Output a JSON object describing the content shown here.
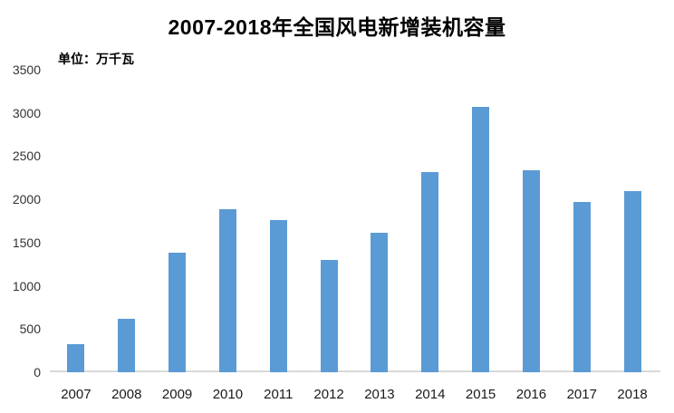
{
  "chart_data": {
    "type": "bar",
    "title": "2007-2018年全国风电新增装机容量",
    "unit_label": "单位：万千瓦",
    "categories": [
      "2007",
      "2008",
      "2009",
      "2010",
      "2011",
      "2012",
      "2013",
      "2014",
      "2015",
      "2016",
      "2017",
      "2018"
    ],
    "values": [
      330,
      615,
      1380,
      1890,
      1765,
      1295,
      1610,
      2320,
      3075,
      2335,
      1965,
      2100
    ],
    "xlabel": "",
    "ylabel": "",
    "ylim": [
      0,
      3500
    ],
    "yticks": [
      0,
      500,
      1000,
      1500,
      2000,
      2500,
      3000,
      3500
    ],
    "grid": false,
    "legend": false,
    "bar_color": "#5b9bd5",
    "axis_line_color": "#d9d9d9",
    "tick_text_color": "#333333",
    "title_color": "#000000",
    "background": "#ffffff"
  }
}
